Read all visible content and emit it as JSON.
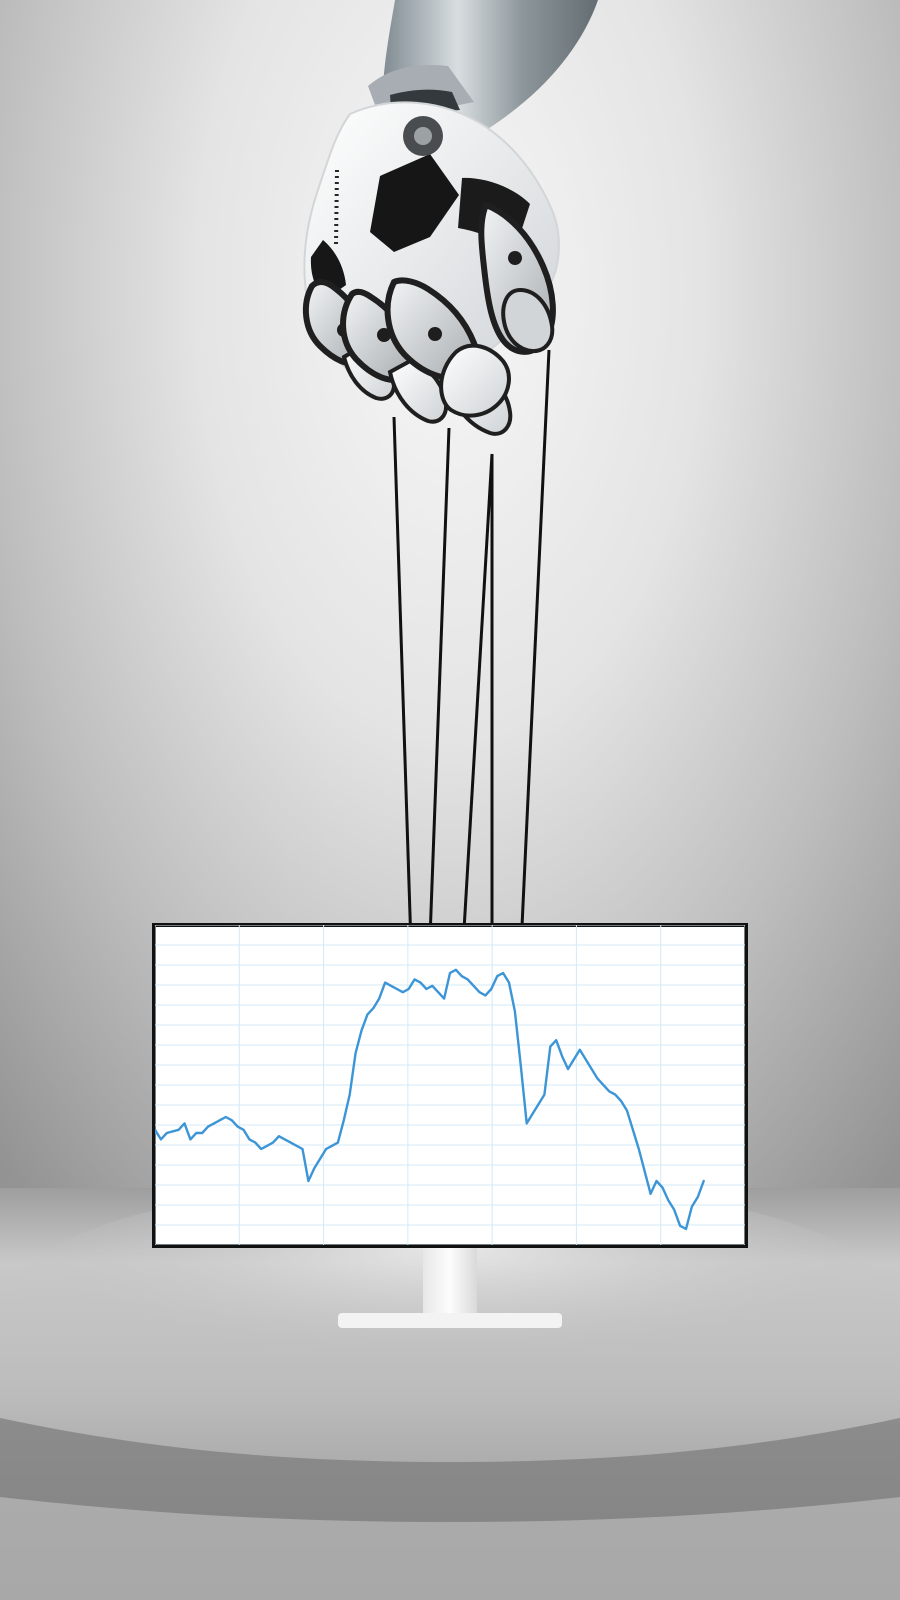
{
  "scene": {
    "subject": "robotic-hand-puppeteering-stock-chart",
    "colors": {
      "background_light": "#f3f3f3",
      "background_mid": "#d9d9d9",
      "background_dark": "#8d8d8d",
      "floor": "#b9b9b9",
      "floor_shadow": "#6f6f6f",
      "robot_white": "#f2f2f2",
      "robot_gray": "#c7c9cc",
      "robot_dark": "#1e1e1e",
      "string": "#111111",
      "monitor_frame": "#111111",
      "grid": "#d3eaf7",
      "line": "#3b95d6",
      "stand": "#f4f4f4"
    }
  },
  "chart_data": {
    "type": "line",
    "title": "",
    "xlabel": "",
    "ylabel": "",
    "grid": true,
    "legend": "none",
    "xlim": [
      0,
      100
    ],
    "ylim": [
      0,
      100
    ],
    "series": [
      {
        "values": [
          [
            0,
            36
          ],
          [
            1,
            33
          ],
          [
            2,
            35
          ],
          [
            4,
            36
          ],
          [
            5,
            38
          ],
          [
            6,
            33
          ],
          [
            7,
            35
          ],
          [
            8,
            35
          ],
          [
            9,
            37
          ],
          [
            10,
            38
          ],
          [
            11,
            39
          ],
          [
            12,
            40
          ],
          [
            13,
            39
          ],
          [
            14,
            37
          ],
          [
            15,
            36
          ],
          [
            16,
            33
          ],
          [
            17,
            32
          ],
          [
            18,
            30
          ],
          [
            19,
            31
          ],
          [
            20,
            32
          ],
          [
            21,
            34
          ],
          [
            22,
            33
          ],
          [
            23,
            32
          ],
          [
            24,
            31
          ],
          [
            25,
            30
          ],
          [
            26,
            20
          ],
          [
            27,
            24
          ],
          [
            28,
            27
          ],
          [
            29,
            30
          ],
          [
            30,
            31
          ],
          [
            31,
            32
          ],
          [
            32,
            39
          ],
          [
            33,
            47
          ],
          [
            34,
            60
          ],
          [
            35,
            67
          ],
          [
            36,
            72
          ],
          [
            37,
            74
          ],
          [
            38,
            77
          ],
          [
            39,
            82
          ],
          [
            40,
            81
          ],
          [
            41,
            80
          ],
          [
            42,
            79
          ],
          [
            43,
            80
          ],
          [
            44,
            83
          ],
          [
            45,
            82
          ],
          [
            46,
            80
          ],
          [
            47,
            81
          ],
          [
            48,
            79
          ],
          [
            49,
            77
          ],
          [
            50,
            85
          ],
          [
            51,
            86
          ],
          [
            52,
            84
          ],
          [
            53,
            83
          ],
          [
            54,
            81
          ],
          [
            55,
            79
          ],
          [
            56,
            78
          ],
          [
            57,
            80
          ],
          [
            58,
            84
          ],
          [
            59,
            85
          ],
          [
            60,
            82
          ],
          [
            61,
            73
          ],
          [
            62,
            56
          ],
          [
            63,
            38
          ],
          [
            64,
            41
          ],
          [
            65,
            44
          ],
          [
            66,
            47
          ],
          [
            67,
            62
          ],
          [
            68,
            64
          ],
          [
            69,
            59
          ],
          [
            70,
            55
          ],
          [
            71,
            58
          ],
          [
            72,
            61
          ],
          [
            73,
            58
          ],
          [
            74,
            55
          ],
          [
            75,
            52
          ],
          [
            76,
            50
          ],
          [
            77,
            48
          ],
          [
            78,
            47
          ],
          [
            79,
            45
          ],
          [
            80,
            42
          ],
          [
            81,
            36
          ],
          [
            82,
            30
          ],
          [
            83,
            23
          ],
          [
            84,
            16
          ],
          [
            85,
            20
          ],
          [
            86,
            18
          ],
          [
            87,
            14
          ],
          [
            88,
            11
          ],
          [
            89,
            6
          ],
          [
            90,
            5
          ],
          [
            91,
            12
          ],
          [
            92,
            15
          ],
          [
            93,
            20
          ]
        ]
      }
    ]
  }
}
